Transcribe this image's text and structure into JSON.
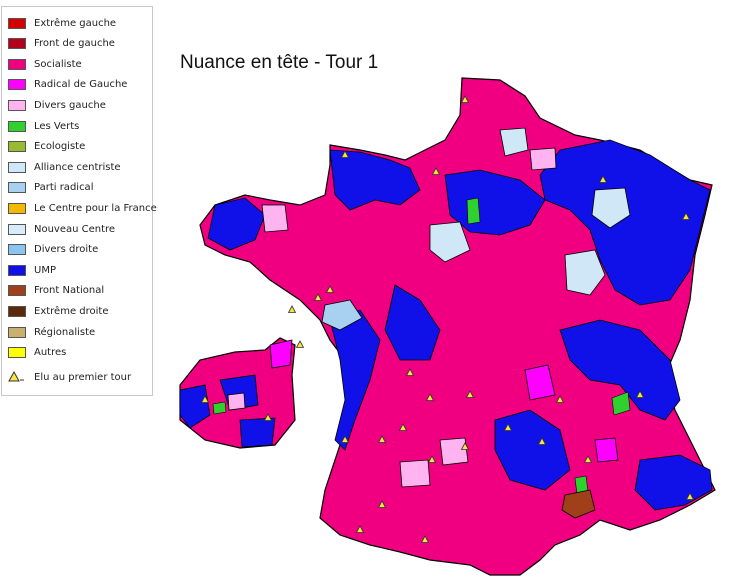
{
  "title": "Nuance en tête - Tour 1",
  "legend": [
    {
      "label": "Extrême gauche",
      "color": "#d40000"
    },
    {
      "label": "Front de gauche",
      "color": "#b3001b"
    },
    {
      "label": "Socialiste",
      "color": "#f00080"
    },
    {
      "label": "Radical de Gauche",
      "color": "#ff00ff"
    },
    {
      "label": "Divers gauche",
      "color": "#ffb3f0"
    },
    {
      "label": "Les Verts",
      "color": "#2fd12f"
    },
    {
      "label": "Ecologiste",
      "color": "#99bb33"
    },
    {
      "label": "Alliance centriste",
      "color": "#cfe7f7"
    },
    {
      "label": "Parti radical",
      "color": "#a8d0f0"
    },
    {
      "label": "Le Centre pour la France",
      "color": "#f5b800"
    },
    {
      "label": "Nouveau Centre",
      "color": "#d7ecfa"
    },
    {
      "label": "Divers droite",
      "color": "#8cc4f0"
    },
    {
      "label": "UMP",
      "color": "#1010e8"
    },
    {
      "label": "Front National",
      "color": "#a0401a"
    },
    {
      "label": "Extrême droite",
      "color": "#5a2a0a"
    },
    {
      "label": "Régionaliste",
      "color": "#c8b070"
    },
    {
      "label": "Autres",
      "color": "#ffff00"
    }
  ],
  "elected_marker": {
    "label": "Elu au premier tour",
    "color": "#f5e642"
  }
}
